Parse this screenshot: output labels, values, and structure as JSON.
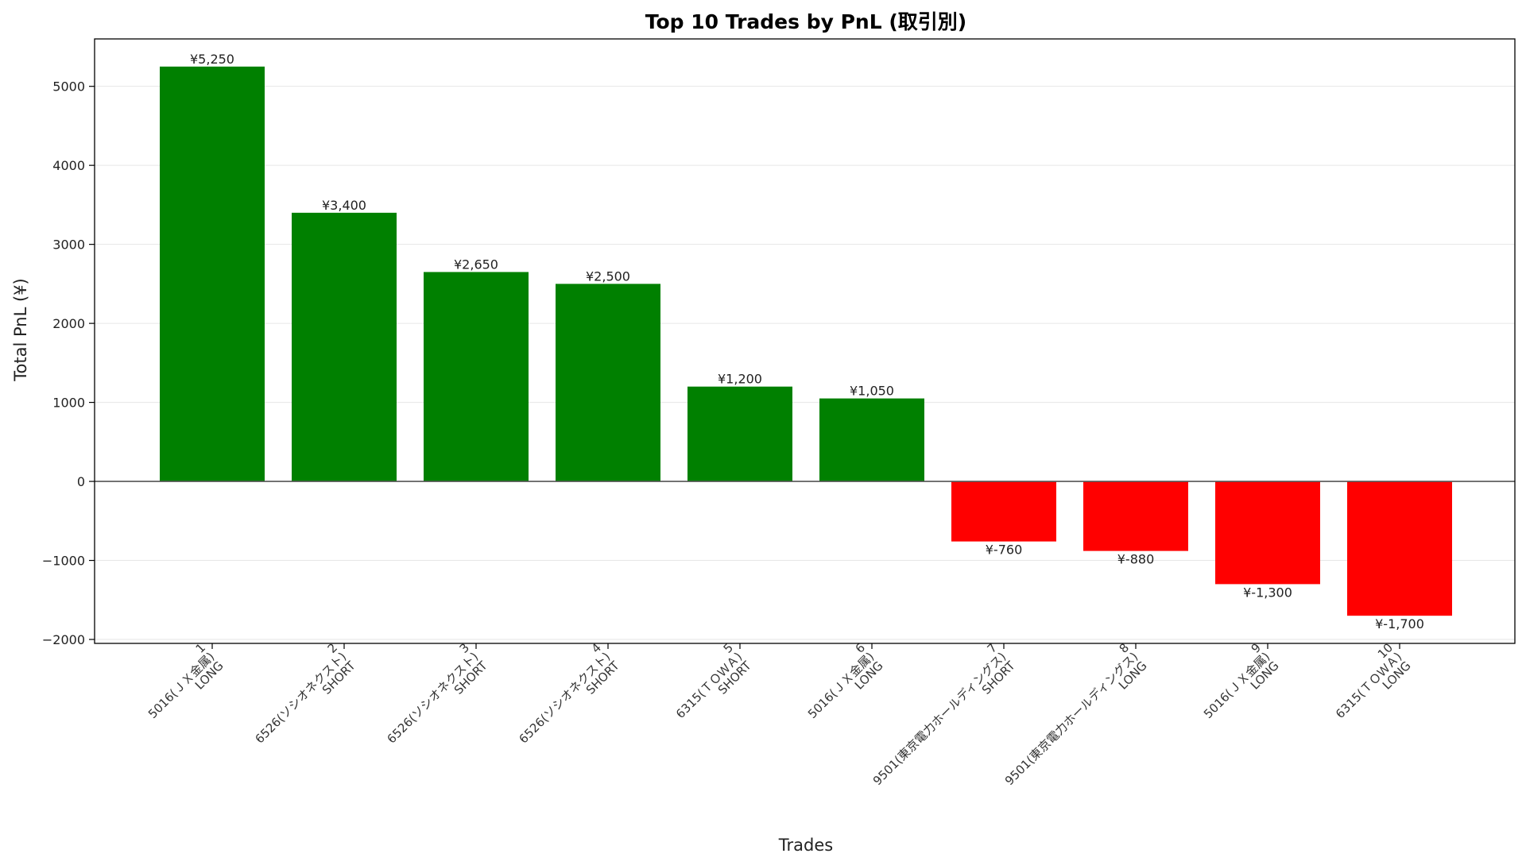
{
  "chart_data": {
    "type": "bar",
    "title": "Top 10 Trades by PnL (取引別)",
    "xlabel": "Trades",
    "ylabel": "Total PnL (¥)",
    "ylim": [
      -2050,
      5600
    ],
    "yticks": [
      -2000,
      -1000,
      0,
      1000,
      2000,
      3000,
      4000,
      5000
    ],
    "ytick_labels": [
      "−2000",
      "−1000",
      "0",
      "1000",
      "2000",
      "3000",
      "4000",
      "5000"
    ],
    "grid": "horizontal",
    "categories": [
      [
        "1",
        "5016(ＪＸ金属)",
        "LONG"
      ],
      [
        "2",
        "6526(ソシオネクスト)",
        "SHORT"
      ],
      [
        "3",
        "6526(ソシオネクスト)",
        "SHORT"
      ],
      [
        "4",
        "6526(ソシオネクスト)",
        "SHORT"
      ],
      [
        "5",
        "6315(ＴＯＷＡ)",
        "SHORT"
      ],
      [
        "6",
        "5016(ＪＸ金属)",
        "LONG"
      ],
      [
        "7",
        "9501(東京電力ホールディングス)",
        "SHORT"
      ],
      [
        "8",
        "9501(東京電力ホールディングス)",
        "LONG"
      ],
      [
        "9",
        "5016(ＪＸ金属)",
        "LONG"
      ],
      [
        "10",
        "6315(ＴＯＷＡ)",
        "LONG"
      ]
    ],
    "values": [
      5250,
      3400,
      2650,
      2500,
      1200,
      1050,
      -760,
      -880,
      -1300,
      -1700
    ],
    "data_labels": [
      "¥5,250",
      "¥3,400",
      "¥2,650",
      "¥2,500",
      "¥1,200",
      "¥1,050",
      "¥-760",
      "¥-880",
      "¥-1,300",
      "¥-1,700"
    ],
    "colors": {
      "positive": "#008000",
      "negative": "#ff0000",
      "zero_line": "#555555",
      "grid": "#e6e6e6"
    }
  }
}
